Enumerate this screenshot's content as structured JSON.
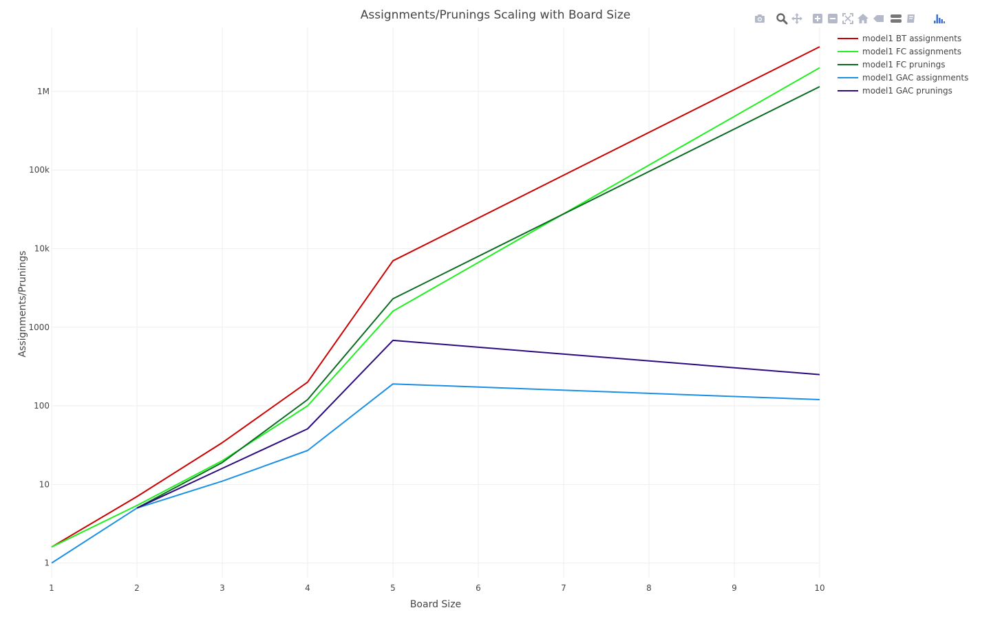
{
  "modebar": {
    "buttons": [
      {
        "name": "camera-icon",
        "title": "Download plot as a png"
      },
      {
        "name": "zoom-icon",
        "title": "Zoom"
      },
      {
        "name": "pan-icon",
        "title": "Pan"
      },
      {
        "name": "zoom-in-icon",
        "title": "Zoom in"
      },
      {
        "name": "zoom-out-icon",
        "title": "Zoom out"
      },
      {
        "name": "autoscale-icon",
        "title": "Autoscale"
      },
      {
        "name": "home-icon",
        "title": "Reset axes"
      },
      {
        "name": "spike-lines-icon",
        "title": "Toggle Spike Lines"
      },
      {
        "name": "hover-compare-icon",
        "title": "Compare data on hover"
      },
      {
        "name": "edit-icon",
        "title": "Edit in Chart Studio"
      },
      {
        "name": "plotly-logo-icon",
        "title": "Produced with Plotly"
      }
    ],
    "icon_color": "#b3b9c9",
    "logo_color": "#3f6fd1"
  },
  "chart_data": {
    "type": "line",
    "title": "Assignments/Prunings Scaling with Board Size",
    "xlabel": "Board Size",
    "ylabel": "Assignments/Prunings",
    "x": [
      1,
      2,
      3,
      4,
      5,
      10
    ],
    "x_ticks": [
      "1",
      "2",
      "3",
      "4",
      "5",
      "6",
      "7",
      "8",
      "9",
      "10"
    ],
    "xlim": [
      1,
      10
    ],
    "y_scale": "log",
    "ylim": [
      0.65,
      6500000
    ],
    "y_ticks": [
      {
        "value": 1,
        "label": "1"
      },
      {
        "value": 10,
        "label": "10"
      },
      {
        "value": 100,
        "label": "100"
      },
      {
        "value": 1000,
        "label": "1000"
      },
      {
        "value": 10000,
        "label": "10k"
      },
      {
        "value": 100000,
        "label": "100k"
      },
      {
        "value": 1000000,
        "label": "1M"
      }
    ],
    "grid": true,
    "legend_position": "top-right",
    "series": [
      {
        "name": "model1 BT assignments",
        "color": "#cc0000",
        "points": [
          [
            1,
            1.6
          ],
          [
            2,
            7
          ],
          [
            3,
            34
          ],
          [
            4,
            200
          ],
          [
            5,
            7000
          ],
          [
            10,
            3700000
          ]
        ]
      },
      {
        "name": "model1 FC assignments",
        "color": "#1ff01f",
        "points": [
          [
            1,
            1.6
          ],
          [
            2,
            5.4
          ],
          [
            3,
            20
          ],
          [
            4,
            100
          ],
          [
            5,
            1600
          ],
          [
            10,
            2000000
          ]
        ]
      },
      {
        "name": "model1 FC prunings",
        "color": "#086b20",
        "points": [
          [
            2,
            5
          ],
          [
            3,
            19
          ],
          [
            4,
            120
          ],
          [
            5,
            2300
          ],
          [
            10,
            1150000
          ]
        ]
      },
      {
        "name": "model1 GAC assignments",
        "color": "#1a8fe6",
        "points": [
          [
            1,
            1
          ],
          [
            2,
            5
          ],
          [
            3,
            11
          ],
          [
            4,
            27
          ],
          [
            5,
            190
          ],
          [
            10,
            120
          ]
        ]
      },
      {
        "name": "model1 GAC prunings",
        "color": "#2b0a80",
        "points": [
          [
            2,
            5
          ],
          [
            3,
            16
          ],
          [
            4,
            51
          ],
          [
            5,
            680
          ],
          [
            10,
            250
          ]
        ]
      }
    ]
  }
}
